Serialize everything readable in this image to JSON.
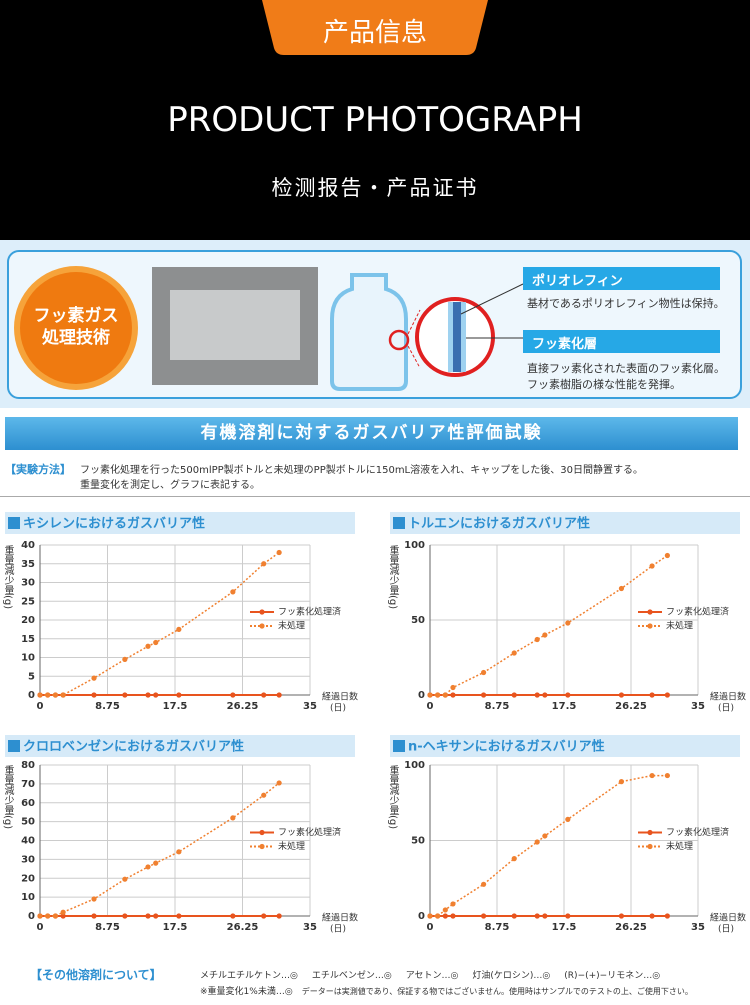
{
  "header": {
    "tab": "产品信息",
    "title": "PRODUCT PHOTOGRAPH",
    "subtitle": "检测报告・产品证书"
  },
  "tech": {
    "badge": [
      "フッ素ガス",
      "処理技術"
    ],
    "layer1": {
      "name": "ポリオレフィン",
      "text": "基材であるポリオレフィン物性は保持。"
    },
    "layer2": {
      "name": "フッ素化層",
      "lines": [
        "直接フッ素化された表面のフッ素化層。",
        "フッ素樹脂の様な性能を発揮。"
      ]
    }
  },
  "test": {
    "title": "有機溶剤に対するガスバリア性評価試験",
    "method_label": "【実験方法】",
    "method_lines": [
      "フッ素化処理を行った500mlPP製ボトルと未処理のPP製ボトルに150mL溶液を入れ、キャップをした後、30日間静置する。",
      "重量変化を測定し、グラフに表記する。"
    ]
  },
  "chart_data": [
    {
      "type": "line",
      "title": "キシレンにおけるガスバリア性",
      "ylabel": "重量減少量(g)",
      "xlabel": "経過日数",
      "xlabel_unit": "(日)",
      "x": [
        0,
        1,
        2,
        3,
        7,
        11,
        14,
        15,
        18,
        25,
        29,
        31
      ],
      "xlim": [
        0,
        35
      ],
      "xticks": [
        0,
        8.75,
        17.5,
        26.25,
        35
      ],
      "ylim": [
        0,
        40
      ],
      "yticks": [
        0,
        5,
        10,
        15,
        20,
        25,
        30,
        35,
        40
      ],
      "grid": true,
      "legend": "right",
      "series": [
        {
          "name": "フッ素化処理済",
          "color": "#e8541e",
          "style": "solid",
          "values": [
            0,
            0,
            0,
            0,
            0,
            0,
            0,
            0,
            0,
            0,
            0,
            0
          ]
        },
        {
          "name": "未処理",
          "color": "#f08030",
          "style": "dotted",
          "values": [
            0,
            0,
            0,
            0,
            4.5,
            9.5,
            13,
            14,
            17.5,
            27.5,
            35,
            38
          ]
        }
      ]
    },
    {
      "type": "line",
      "title": "トルエンにおけるガスバリア性",
      "ylabel": "重量減少量(g)",
      "xlabel": "経過日数",
      "xlabel_unit": "(日)",
      "x": [
        0,
        1,
        2,
        3,
        7,
        11,
        14,
        15,
        18,
        25,
        29,
        31
      ],
      "xlim": [
        0,
        35
      ],
      "xticks": [
        0,
        8.75,
        17.5,
        26.25,
        35
      ],
      "ylim": [
        0,
        100
      ],
      "yticks": [
        0,
        50,
        100
      ],
      "grid": true,
      "legend": "right",
      "series": [
        {
          "name": "フッ素化処理済",
          "color": "#e8541e",
          "style": "solid",
          "values": [
            0,
            0,
            0,
            0,
            0,
            0,
            0,
            0,
            0,
            0,
            0,
            0
          ]
        },
        {
          "name": "未処理",
          "color": "#f08030",
          "style": "dotted",
          "values": [
            0,
            0,
            0,
            5,
            15,
            28,
            37,
            40,
            48,
            71,
            86,
            93
          ]
        }
      ]
    },
    {
      "type": "line",
      "title": "クロロベンゼンにおけるガスバリア性",
      "ylabel": "重量減少量(g)",
      "xlabel": "経過日数",
      "xlabel_unit": "(日)",
      "x": [
        0,
        1,
        2,
        3,
        7,
        11,
        14,
        15,
        18,
        25,
        29,
        31
      ],
      "xlim": [
        0,
        35
      ],
      "xticks": [
        0,
        8.75,
        17.5,
        26.25,
        35
      ],
      "ylim": [
        0,
        80
      ],
      "yticks": [
        0,
        10,
        20,
        30,
        40,
        50,
        60,
        70,
        80
      ],
      "grid": true,
      "legend": "right",
      "series": [
        {
          "name": "フッ素化処理済",
          "color": "#e8541e",
          "style": "solid",
          "values": [
            0,
            0,
            0,
            0,
            0,
            0,
            0,
            0,
            0,
            0,
            0,
            0
          ]
        },
        {
          "name": "未処理",
          "color": "#f08030",
          "style": "dotted",
          "values": [
            0,
            0,
            0,
            2,
            9,
            19.5,
            26,
            28,
            34,
            52,
            64,
            70.5
          ]
        }
      ]
    },
    {
      "type": "line",
      "title": "n-ヘキサンにおけるガスバリア性",
      "ylabel": "重量減少量(g)",
      "xlabel": "経過日数",
      "xlabel_unit": "(日)",
      "x": [
        0,
        1,
        2,
        3,
        7,
        11,
        14,
        15,
        18,
        25,
        29,
        31
      ],
      "xlim": [
        0,
        35
      ],
      "xticks": [
        0,
        8.75,
        17.5,
        26.25,
        35
      ],
      "ylim": [
        0,
        100
      ],
      "yticks": [
        0,
        50,
        100
      ],
      "grid": true,
      "legend": "right",
      "series": [
        {
          "name": "フッ素化処理済",
          "color": "#e8541e",
          "style": "solid",
          "values": [
            0,
            0,
            0,
            0,
            0,
            0,
            0,
            0,
            0,
            0,
            0,
            0
          ]
        },
        {
          "name": "未処理",
          "color": "#f08030",
          "style": "dotted",
          "values": [
            0,
            0,
            4,
            8,
            21,
            38,
            49,
            53,
            64,
            89,
            93,
            93
          ]
        }
      ]
    }
  ],
  "others": {
    "label": "【その他溶剤について】",
    "items": [
      "メチルエチルケトン…◎",
      "エチルベンゼン…◎",
      "アセトン…◎",
      "灯油(ケロシン)…◎",
      "(R)−(+)−リモネン…◎"
    ],
    "note1": "※重量変化1%未満…◎",
    "note2": "データーは実測値であり、保証する物ではございません。使用時はサンプルでのテストの上、ご使用下さい。"
  }
}
